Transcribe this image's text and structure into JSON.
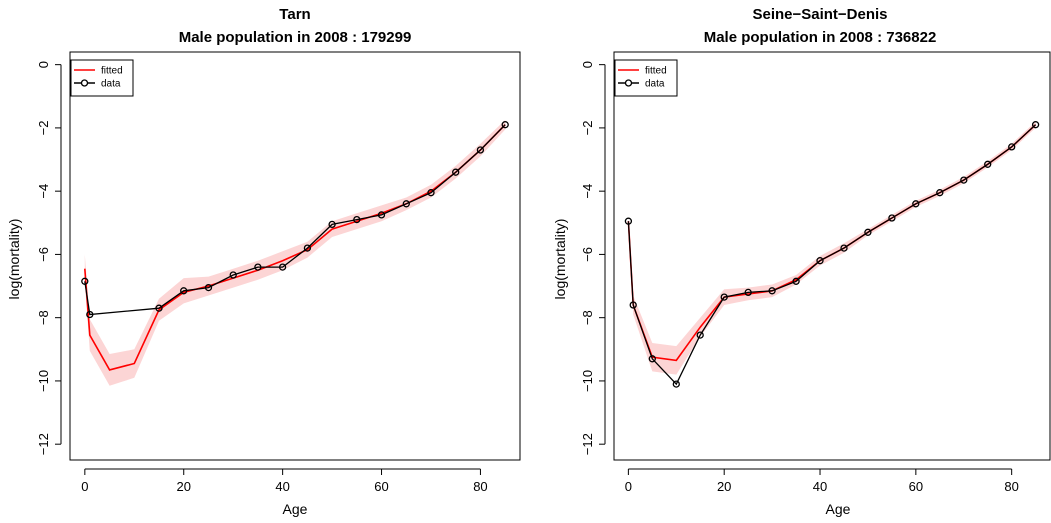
{
  "chart_data": [
    {
      "type": "line",
      "title": "Tarn",
      "subtitle": "Male population in  2008 :  179299",
      "xlabel": "Age",
      "ylabel": "log(mortality)",
      "xlim": [
        -3,
        88
      ],
      "ylim": [
        -12.5,
        0.4
      ],
      "xticks": [
        0,
        20,
        40,
        60,
        80
      ],
      "yticks": [
        0,
        -2,
        -4,
        -6,
        -8,
        -10,
        -12
      ],
      "grid": false,
      "legend": {
        "position": "top-left",
        "entries": [
          "fitted",
          "data"
        ]
      },
      "colors": {
        "fitted": "#ff0000",
        "band": "#fcd5d5",
        "data": "#000000"
      },
      "series": [
        {
          "name": "fitted",
          "x": [
            0,
            1,
            5,
            10,
            15,
            20,
            25,
            30,
            35,
            40,
            45,
            50,
            55,
            60,
            65,
            70,
            75,
            80,
            85
          ],
          "values": [
            -6.45,
            -8.55,
            -9.65,
            -9.45,
            -7.75,
            -7.2,
            -7.0,
            -6.75,
            -6.5,
            -6.2,
            -5.85,
            -5.2,
            -4.95,
            -4.7,
            -4.4,
            -4.0,
            -3.4,
            -2.7,
            -1.9
          ],
          "lower": [
            -6.9,
            -9.05,
            -10.15,
            -9.9,
            -8.1,
            -7.55,
            -7.3,
            -7.05,
            -6.8,
            -6.5,
            -6.1,
            -5.45,
            -5.2,
            -4.95,
            -4.6,
            -4.2,
            -3.6,
            -2.9,
            -2.05
          ],
          "upper": [
            -6.0,
            -8.05,
            -9.15,
            -9.0,
            -7.4,
            -6.75,
            -6.7,
            -6.45,
            -6.2,
            -5.9,
            -5.6,
            -4.95,
            -4.7,
            -4.45,
            -4.2,
            -3.8,
            -3.2,
            -2.5,
            -1.75
          ]
        },
        {
          "name": "data",
          "x": [
            0,
            1,
            15,
            20,
            25,
            30,
            35,
            40,
            45,
            50,
            55,
            60,
            65,
            70,
            75,
            80,
            85
          ],
          "values": [
            -6.85,
            -7.9,
            -7.7,
            -7.15,
            -7.05,
            -6.65,
            -6.4,
            -6.4,
            -5.8,
            -5.05,
            -4.9,
            -4.75,
            -4.4,
            -4.05,
            -3.4,
            -2.7,
            -1.9
          ]
        }
      ]
    },
    {
      "type": "line",
      "title": "Seine−Saint−Denis",
      "subtitle": "Male population in  2008 :  736822",
      "xlabel": "Age",
      "ylabel": "log(mortality)",
      "xlim": [
        -3,
        88
      ],
      "ylim": [
        -12.5,
        0.4
      ],
      "xticks": [
        0,
        20,
        40,
        60,
        80
      ],
      "yticks": [
        0,
        -2,
        -4,
        -6,
        -8,
        -10,
        -12
      ],
      "grid": false,
      "legend": {
        "position": "top-left",
        "entries": [
          "fitted",
          "data"
        ]
      },
      "colors": {
        "fitted": "#ff0000",
        "band": "#fcd5d5",
        "data": "#000000"
      },
      "series": [
        {
          "name": "fitted",
          "x": [
            0,
            1,
            5,
            10,
            15,
            20,
            25,
            30,
            35,
            40,
            45,
            50,
            55,
            60,
            65,
            70,
            75,
            80,
            85
          ],
          "values": [
            -4.95,
            -7.6,
            -9.25,
            -9.35,
            -8.3,
            -7.35,
            -7.25,
            -7.15,
            -6.8,
            -6.2,
            -5.8,
            -5.3,
            -4.85,
            -4.4,
            -4.05,
            -3.65,
            -3.15,
            -2.6,
            -1.9
          ],
          "lower": [
            -5.1,
            -7.9,
            -9.7,
            -9.8,
            -8.6,
            -7.6,
            -7.45,
            -7.35,
            -6.95,
            -6.35,
            -5.95,
            -5.4,
            -4.95,
            -4.5,
            -4.15,
            -3.75,
            -3.25,
            -2.7,
            -2.0
          ],
          "upper": [
            -4.8,
            -7.3,
            -8.8,
            -8.9,
            -8.0,
            -7.1,
            -7.05,
            -6.95,
            -6.65,
            -6.05,
            -5.65,
            -5.2,
            -4.75,
            -4.3,
            -3.95,
            -3.55,
            -3.05,
            -2.5,
            -1.8
          ]
        },
        {
          "name": "data",
          "x": [
            0,
            1,
            5,
            10,
            15,
            20,
            25,
            30,
            35,
            40,
            45,
            50,
            55,
            60,
            65,
            70,
            75,
            80,
            85
          ],
          "values": [
            -4.95,
            -7.6,
            -9.3,
            -10.1,
            -8.55,
            -7.35,
            -7.2,
            -7.15,
            -6.85,
            -6.2,
            -5.8,
            -5.3,
            -4.85,
            -4.4,
            -4.05,
            -3.65,
            -3.15,
            -2.6,
            -1.9
          ]
        }
      ]
    }
  ]
}
